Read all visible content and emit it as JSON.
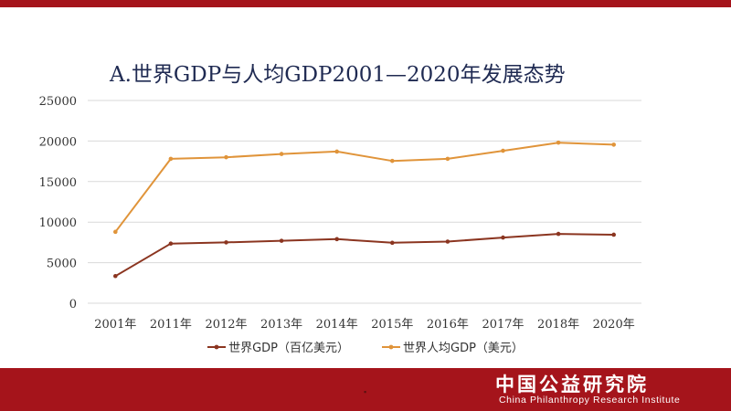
{
  "colors": {
    "brand": "#a5141b",
    "series1": "#8b3520",
    "series2": "#e0943a",
    "grid": "#d9d9d9",
    "tick_text": "#333333"
  },
  "footer": {
    "org_name_cn": "中国公益研究院",
    "org_name_en": "China Philanthropy Research Institute"
  },
  "chart_data": {
    "type": "line",
    "title": "A.世界GDP与人均GDP2001—2020年发展态势",
    "categories": [
      "2001年",
      "2011年",
      "2012年",
      "2013年",
      "2014年",
      "2015年",
      "2016年",
      "2017年",
      "2018年",
      "2020年"
    ],
    "y_ticks": [
      "0",
      "5000",
      "10000",
      "15000",
      "20000",
      "25000"
    ],
    "ylim": [
      0,
      25000
    ],
    "grid": true,
    "legend_position": "bottom",
    "series": [
      {
        "name": "世界GDP（百亿美元）",
        "values": [
          3350,
          7350,
          7500,
          7700,
          7900,
          7450,
          7600,
          8100,
          8550,
          8450
        ]
      },
      {
        "name": "世界人均GDP（美元）",
        "values": [
          8800,
          17800,
          18000,
          18400,
          18700,
          17550,
          17800,
          18800,
          19800,
          19550
        ]
      }
    ]
  }
}
